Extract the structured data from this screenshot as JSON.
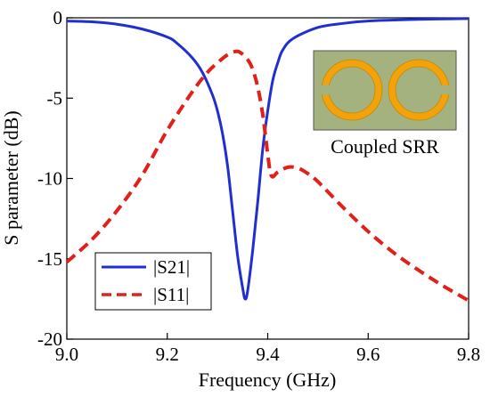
{
  "chart_data": {
    "type": "line",
    "xlabel": "Frequency (GHz)",
    "ylabel": "S parameter (dB)",
    "xlim": [
      9.0,
      9.8
    ],
    "ylim": [
      -20,
      0
    ],
    "xticks": [
      "9.0",
      "9.2",
      "9.4",
      "9.6",
      "9.8"
    ],
    "yticks": [
      "0",
      "-5",
      "-10",
      "-15",
      "-20"
    ],
    "grid": false,
    "legend_position": "bottom-left",
    "inset_label": "Coupled SRR",
    "series": [
      {
        "name": "|S21|",
        "color": "#1f2fd0",
        "style": "solid",
        "x": [
          9.0,
          9.05,
          9.1,
          9.15,
          9.2,
          9.22,
          9.25,
          9.27,
          9.29,
          9.3,
          9.31,
          9.32,
          9.33,
          9.34,
          9.35,
          9.355,
          9.36,
          9.37,
          9.38,
          9.39,
          9.4,
          9.41,
          9.42,
          9.43,
          9.45,
          9.5,
          9.55,
          9.6,
          9.7,
          9.8
        ],
        "y": [
          -0.2,
          -0.25,
          -0.4,
          -0.7,
          -1.2,
          -1.6,
          -2.5,
          -3.4,
          -4.8,
          -5.8,
          -7.2,
          -9.2,
          -12.0,
          -14.8,
          -16.8,
          -17.5,
          -17.0,
          -14.5,
          -11.5,
          -8.2,
          -5.8,
          -3.9,
          -2.8,
          -2.0,
          -1.3,
          -0.6,
          -0.35,
          -0.2,
          -0.1,
          -0.05
        ]
      },
      {
        "name": "|S11|",
        "color": "#e0201a",
        "style": "dashed",
        "x": [
          9.0,
          9.05,
          9.1,
          9.15,
          9.2,
          9.25,
          9.28,
          9.3,
          9.32,
          9.335,
          9.345,
          9.36,
          9.37,
          9.38,
          9.39,
          9.4,
          9.405,
          9.41,
          9.42,
          9.44,
          9.46,
          9.48,
          9.5,
          9.55,
          9.6,
          9.65,
          9.7,
          9.75,
          9.8
        ],
        "y": [
          -15.2,
          -13.8,
          -12.0,
          -9.8,
          -7.0,
          -4.6,
          -3.4,
          -2.8,
          -2.3,
          -2.1,
          -2.15,
          -2.6,
          -3.2,
          -4.3,
          -6.0,
          -8.5,
          -9.6,
          -9.9,
          -9.6,
          -9.3,
          -9.35,
          -9.7,
          -10.2,
          -11.8,
          -13.3,
          -14.6,
          -15.7,
          -16.7,
          -17.6
        ]
      }
    ]
  },
  "colors": {
    "inset_background": "#a3b27e",
    "ring": "#f2a20a"
  }
}
